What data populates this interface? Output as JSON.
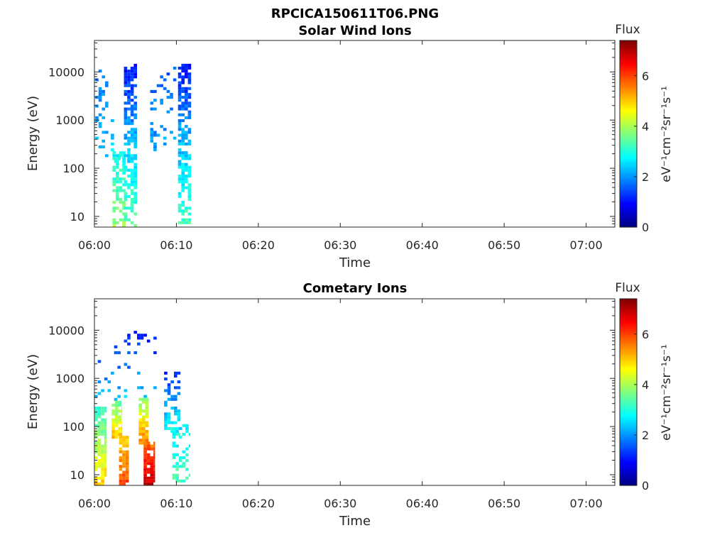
{
  "figure": {
    "suptitle": "RPCICA150611T06.PNG"
  },
  "chart_data": [
    {
      "type": "heatmap",
      "title": "Solar Wind Ions",
      "xlabel": "Time",
      "ylabel": "Energy (eV)",
      "x_ticks": [
        "06:00",
        "06:10",
        "06:20",
        "06:30",
        "06:40",
        "06:50",
        "07:00"
      ],
      "x_range_minutes": [
        0,
        63.5
      ],
      "y_scale": "log",
      "y_ticks": [
        "10",
        "100",
        "1000",
        "10000"
      ],
      "y_range": [
        6,
        45000
      ],
      "colorbar": {
        "label": "Flux",
        "units": "eV⁻¹cm⁻²sr⁻¹s⁻¹",
        "ticks": [
          "0",
          "2",
          "4",
          "6"
        ],
        "range": [
          0,
          7.4
        ],
        "colormap": "jet"
      },
      "columns": [
        {
          "t_start": 0.1,
          "t_end": 1.7,
          "e_min": 150,
          "e_max": 11000,
          "f_top": 1.8,
          "f_bot": 2.3,
          "density": 0.3
        },
        {
          "t_start": 2.0,
          "t_end": 3.2,
          "e_min": 120,
          "e_max": 1200,
          "f_top": 2.2,
          "f_bot": 2.7,
          "density": 0.22
        },
        {
          "t_start": 2.2,
          "t_end": 3.8,
          "e_min": 6,
          "e_max": 200,
          "f_top": 2.8,
          "f_bot": 3.9,
          "density": 0.65
        },
        {
          "t_start": 3.6,
          "t_end": 5.2,
          "e_min": 250,
          "e_max": 13000,
          "f_top": 1.0,
          "f_bot": 2.4,
          "density": 0.62
        },
        {
          "t_start": 3.6,
          "t_end": 5.2,
          "e_min": 6,
          "e_max": 250,
          "f_top": 2.4,
          "f_bot": 3.4,
          "density": 0.55
        },
        {
          "t_start": 6.8,
          "t_end": 10.0,
          "e_min": 150,
          "e_max": 12000,
          "f_top": 1.6,
          "f_bot": 2.2,
          "density": 0.14
        },
        {
          "t_start": 10.2,
          "t_end": 11.8,
          "e_min": 300,
          "e_max": 14000,
          "f_top": 1.0,
          "f_bot": 2.3,
          "density": 0.65
        },
        {
          "t_start": 10.2,
          "t_end": 11.8,
          "e_min": 6,
          "e_max": 300,
          "f_top": 2.3,
          "f_bot": 3.3,
          "density": 0.62
        }
      ]
    },
    {
      "type": "heatmap",
      "title": "Cometary Ions",
      "xlabel": "Time",
      "ylabel": "Energy (eV)",
      "x_ticks": [
        "06:00",
        "06:10",
        "06:20",
        "06:30",
        "06:40",
        "06:50",
        "07:00"
      ],
      "x_range_minutes": [
        0,
        63.5
      ],
      "y_scale": "log",
      "y_ticks": [
        "10",
        "100",
        "1000",
        "10000"
      ],
      "y_range": [
        6,
        45000
      ],
      "colorbar": {
        "label": "Flux",
        "units": "eV⁻¹cm⁻²sr⁻¹s⁻¹",
        "ticks": [
          "0",
          "2",
          "4",
          "6"
        ],
        "range": [
          0,
          7.4
        ],
        "colormap": "jet"
      },
      "columns": [
        {
          "t_start": 0.0,
          "t_end": 8.0,
          "e_min": 300,
          "e_max": 9000,
          "f_top": 1.0,
          "f_bot": 2.5,
          "density": 0.08
        },
        {
          "t_start": 0.0,
          "t_end": 1.5,
          "e_min": 6,
          "e_max": 250,
          "f_top": 3.0,
          "f_bot": 5.0,
          "density": 0.75
        },
        {
          "t_start": 2.1,
          "t_end": 3.4,
          "e_min": 50,
          "e_max": 300,
          "f_top": 3.5,
          "f_bot": 5.2,
          "density": 0.8
        },
        {
          "t_start": 3.0,
          "t_end": 4.2,
          "e_min": 6,
          "e_max": 60,
          "f_top": 4.8,
          "f_bot": 6.0,
          "density": 0.8
        },
        {
          "t_start": 5.4,
          "t_end": 6.6,
          "e_min": 40,
          "e_max": 350,
          "f_top": 3.8,
          "f_bot": 5.6,
          "density": 0.85
        },
        {
          "t_start": 6.0,
          "t_end": 7.4,
          "e_min": 6,
          "e_max": 45,
          "f_top": 5.6,
          "f_bot": 6.8,
          "density": 0.85
        },
        {
          "t_start": 8.5,
          "t_end": 10.5,
          "e_min": 60,
          "e_max": 1200,
          "f_top": 1.2,
          "f_bot": 3.0,
          "density": 0.45
        },
        {
          "t_start": 9.5,
          "t_end": 11.7,
          "e_min": 6,
          "e_max": 100,
          "f_top": 2.6,
          "f_bot": 3.3,
          "density": 0.4
        }
      ]
    }
  ]
}
